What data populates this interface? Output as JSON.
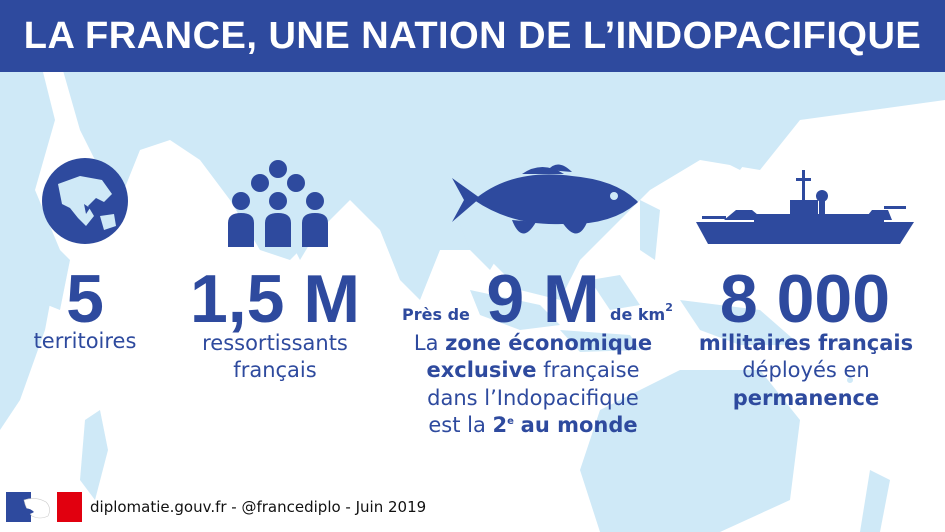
{
  "header": {
    "title": "LA FRANCE, UNE NATION DE L’INDOPACIFIQUE"
  },
  "stats": {
    "territories": {
      "value": "5",
      "caption": "territoires"
    },
    "residents": {
      "value": "1,5 M",
      "caption_line1": "ressortissants",
      "caption_line2": "français"
    },
    "zee": {
      "prefix": "Près de",
      "value": "9 M",
      "unit": "de km",
      "unit_exp": "2",
      "line1_normal": "La",
      "line1_bold": "zone économique",
      "line2_bold": "exclusive",
      "line2_normal": "française",
      "line3": "dans l’Indopacifique",
      "line4_normal": "est la",
      "line4_bold": "2",
      "line4_exp": "e",
      "line4_end": "au monde"
    },
    "military": {
      "value": "8 000",
      "caption_line1": "militaires français",
      "caption_line2": "déployés en",
      "caption_line3": "permanence"
    }
  },
  "footer": {
    "text": "diplomatie.gouv.fr - @francediplo - Juin 2019"
  },
  "colors": {
    "primary": "#2e4a9e",
    "map": "#cfe9f7",
    "red": "#e1000f"
  }
}
